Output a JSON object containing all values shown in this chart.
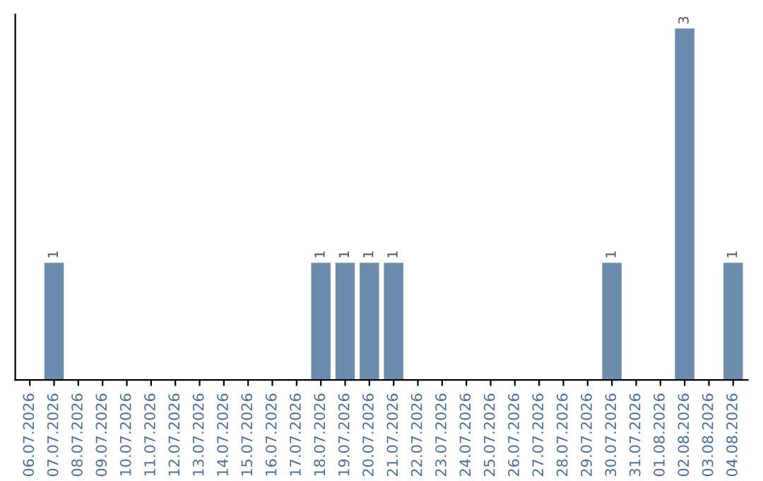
{
  "chart_data": {
    "type": "bar",
    "categories": [
      "06.07.2026",
      "07.07.2026",
      "08.07.2026",
      "09.07.2026",
      "10.07.2026",
      "11.07.2026",
      "12.07.2026",
      "13.07.2026",
      "14.07.2026",
      "15.07.2026",
      "16.07.2026",
      "17.07.2026",
      "18.07.2026",
      "19.07.2026",
      "20.07.2026",
      "21.07.2026",
      "22.07.2026",
      "23.07.2026",
      "24.07.2026",
      "25.07.2026",
      "26.07.2026",
      "27.07.2026",
      "28.07.2026",
      "29.07.2026",
      "30.07.2026",
      "31.07.2026",
      "01.08.2026",
      "02.08.2026",
      "03.08.2026",
      "04.08.2026"
    ],
    "values": [
      0,
      1,
      0,
      0,
      0,
      0,
      0,
      0,
      0,
      0,
      0,
      0,
      1,
      1,
      1,
      1,
      0,
      0,
      0,
      0,
      0,
      0,
      0,
      0,
      1,
      0,
      0,
      3,
      0,
      1
    ],
    "value_labels": [
      null,
      "1",
      null,
      null,
      null,
      null,
      null,
      null,
      null,
      null,
      null,
      null,
      "1",
      "1",
      "1",
      "1",
      null,
      null,
      null,
      null,
      null,
      null,
      null,
      null,
      "1",
      null,
      null,
      "3",
      null,
      "1"
    ],
    "color": "#6b8cad",
    "tick_labels": "x",
    "grid": false
  }
}
